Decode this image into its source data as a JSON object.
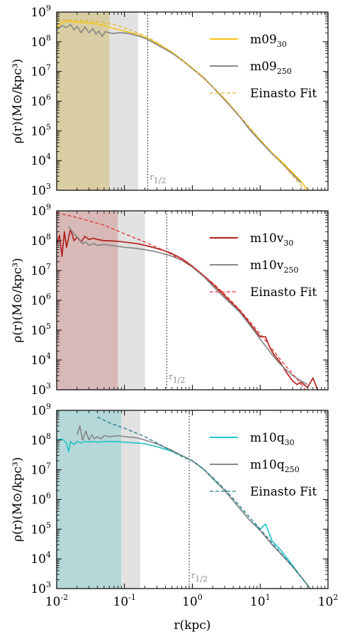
{
  "chart_data": [
    {
      "type": "line",
      "name": "m09",
      "xscale": "log",
      "yscale": "log",
      "xlim": [
        0.01,
        100
      ],
      "ylim": [
        1000,
        1000000000
      ],
      "xlabel": "r(kpc)",
      "ylabel": "ρ(r)(M⊙/kpc³)",
      "grid": false,
      "legend_position": "top-right",
      "shaded_regions": [
        {
          "x": [
            0.01,
            0.06
          ],
          "color": "#d9cea3"
        },
        {
          "x": [
            0.06,
            0.16
          ],
          "color": "#e2e2e2"
        }
      ],
      "vline": {
        "x": 0.22,
        "label_main": "r",
        "label_sub": "1/2"
      },
      "series": [
        {
          "name_main": "m09",
          "name_sub": "30",
          "color": "#f5c518",
          "style": "solid",
          "x": [
            0.01,
            0.012,
            0.015,
            0.02,
            0.025,
            0.03,
            0.04,
            0.05,
            0.07,
            0.1,
            0.15,
            0.2,
            0.3,
            0.5,
            0.7,
            1,
            1.5,
            2,
            3,
            5,
            7,
            10,
            15,
            20,
            30,
            40,
            55
          ],
          "y": [
            300000000,
            450000000,
            500000000,
            450000000,
            450000000,
            430000000,
            400000000,
            350000000,
            280000000,
            230000000,
            180000000,
            140000000,
            90000000,
            45000000,
            25000000,
            13000000,
            6000000,
            3000000,
            1200000,
            300000,
            120000,
            50000,
            18000,
            10000,
            4000,
            2000,
            800
          ]
        },
        {
          "name_main": "m09",
          "name_sub": "250",
          "color": "#888888",
          "style": "solid",
          "x": [
            0.01,
            0.012,
            0.014,
            0.016,
            0.018,
            0.02,
            0.023,
            0.026,
            0.03,
            0.034,
            0.038,
            0.042,
            0.047,
            0.052,
            0.06,
            0.07,
            0.08,
            0.1,
            0.13,
            0.17,
            0.22,
            0.3,
            0.5,
            0.7,
            1,
            1.5,
            2,
            3,
            5,
            7,
            10,
            15,
            20,
            30,
            40
          ],
          "y": [
            250000000,
            350000000,
            300000000,
            380000000,
            250000000,
            330000000,
            200000000,
            320000000,
            200000000,
            280000000,
            180000000,
            230000000,
            150000000,
            220000000,
            200000000,
            190000000,
            200000000,
            200000000,
            180000000,
            150000000,
            120000000,
            80000000,
            42000000,
            24000000,
            12500000,
            5800000,
            3000000,
            1100000,
            300000,
            110000,
            45000,
            17000,
            9000,
            3500,
            1800
          ]
        },
        {
          "name_main": "Einasto Fit",
          "name_sub": "",
          "color": "#e3b02c",
          "style": "dashed",
          "x": [
            0.01,
            0.02,
            0.04,
            0.07,
            0.1,
            0.2,
            0.3,
            0.5,
            1,
            2,
            3,
            5,
            10,
            20,
            40,
            60
          ],
          "y": [
            550000000,
            530000000,
            480000000,
            380000000,
            300000000,
            160000000,
            95000000,
            45000000,
            13000000,
            3000000,
            1200000,
            320000,
            50000,
            9000,
            1500,
            500
          ]
        }
      ]
    },
    {
      "type": "line",
      "name": "m10v",
      "xscale": "log",
      "yscale": "log",
      "xlim": [
        0.01,
        100
      ],
      "ylim": [
        1000,
        1000000000
      ],
      "xlabel": "r(kpc)",
      "ylabel": "ρ(r)(M⊙/kpc³)",
      "grid": false,
      "legend_position": "top-right",
      "shaded_regions": [
        {
          "x": [
            0.01,
            0.08
          ],
          "color": "#d8b9b7"
        },
        {
          "x": [
            0.08,
            0.2
          ],
          "color": "#e2e2e2"
        }
      ],
      "vline": {
        "x": 0.42,
        "label_main": "r",
        "label_sub": "1/2"
      },
      "series": [
        {
          "name_main": "m10v",
          "name_sub": "30",
          "color": "#b0201c",
          "style": "solid",
          "x": [
            0.01,
            0.011,
            0.012,
            0.013,
            0.014,
            0.016,
            0.018,
            0.02,
            0.023,
            0.026,
            0.03,
            0.035,
            0.04,
            0.05,
            0.06,
            0.08,
            0.1,
            0.15,
            0.2,
            0.3,
            0.4,
            0.5,
            0.7,
            1,
            1.5,
            2,
            3,
            5,
            7,
            10,
            12,
            14,
            16,
            20,
            25,
            30,
            35,
            40,
            50,
            60,
            70
          ],
          "y": [
            80000000,
            150000000,
            30000000,
            200000000,
            60000000,
            250000000,
            100000000,
            130000000,
            90000000,
            140000000,
            110000000,
            120000000,
            110000000,
            100000000,
            100000000,
            95000000,
            90000000,
            80000000,
            70000000,
            55000000,
            45000000,
            37000000,
            25000000,
            14000000,
            6500000,
            3500000,
            1400000,
            450000,
            170000,
            60000,
            60000,
            25000,
            15000,
            8000,
            3500,
            2000,
            1500,
            1800,
            1200,
            2500,
            1000
          ]
        },
        {
          "name_main": "m10v",
          "name_sub": "250",
          "color": "#888888",
          "style": "solid",
          "x": [
            0.015,
            0.017,
            0.019,
            0.021,
            0.024,
            0.027,
            0.03,
            0.035,
            0.04,
            0.05,
            0.06,
            0.08,
            0.1,
            0.15,
            0.2,
            0.3,
            0.5,
            0.7,
            1,
            1.5,
            2,
            3,
            5,
            7,
            10,
            15,
            20,
            30,
            40,
            50
          ],
          "y": [
            300000000,
            200000000,
            150000000,
            120000000,
            80000000,
            90000000,
            70000000,
            80000000,
            70000000,
            75000000,
            70000000,
            65000000,
            60000000,
            55000000,
            50000000,
            42000000,
            30000000,
            22000000,
            13000000,
            6000000,
            3000000,
            1200000,
            400000,
            150000,
            50000,
            15000,
            7000,
            3000,
            2000,
            1500
          ]
        },
        {
          "name_main": "Einasto Fit",
          "name_sub": "",
          "color": "#e03232",
          "style": "dashed",
          "x": [
            0.01,
            0.02,
            0.05,
            0.1,
            0.2,
            0.4,
            0.7,
            1,
            2,
            3,
            5,
            10,
            20,
            30,
            50
          ],
          "y": [
            850000000,
            600000000,
            330000000,
            170000000,
            90000000,
            45000000,
            22000000,
            14000000,
            3800000,
            1600000,
            480000,
            75000,
            10000,
            3500,
            800
          ]
        }
      ]
    },
    {
      "type": "line",
      "name": "m10q",
      "xscale": "log",
      "yscale": "log",
      "xlim": [
        0.01,
        100
      ],
      "ylim": [
        1000,
        1000000000
      ],
      "xlabel": "r(kpc)",
      "ylabel": "ρ(r)(M⊙/kpc³)",
      "grid": false,
      "legend_position": "top-right",
      "shaded_regions": [
        {
          "x": [
            0.01,
            0.09
          ],
          "color": "#b6d8d9"
        },
        {
          "x": [
            0.09,
            0.17
          ],
          "color": "#e2e2e2"
        }
      ],
      "vline": {
        "x": 0.9,
        "label_main": "r",
        "label_sub": "1/2"
      },
      "series": [
        {
          "name_main": "m10q",
          "name_sub": "30",
          "color": "#28c4c8",
          "style": "solid",
          "x": [
            0.01,
            0.012,
            0.014,
            0.015,
            0.016,
            0.018,
            0.02,
            0.023,
            0.026,
            0.03,
            0.035,
            0.04,
            0.05,
            0.06,
            0.08,
            0.1,
            0.15,
            0.2,
            0.3,
            0.5,
            0.7,
            1,
            1.5,
            2,
            3,
            5,
            7,
            10,
            12,
            15,
            20,
            30,
            40,
            55
          ],
          "y": [
            100000000,
            110000000,
            80000000,
            40000000,
            90000000,
            70000000,
            90000000,
            80000000,
            90000000,
            85000000,
            90000000,
            85000000,
            88000000,
            90000000,
            88000000,
            85000000,
            80000000,
            75000000,
            60000000,
            42000000,
            30000000,
            20000000,
            10000000,
            5000000,
            2000000,
            500000,
            200000,
            100000,
            150000,
            40000,
            20000,
            6000,
            2500,
            1000
          ]
        },
        {
          "name_main": "m10q",
          "name_sub": "250",
          "color": "#888888",
          "style": "solid",
          "x": [
            0.02,
            0.022,
            0.024,
            0.027,
            0.03,
            0.033,
            0.036,
            0.04,
            0.045,
            0.05,
            0.06,
            0.08,
            0.1,
            0.15,
            0.2,
            0.3,
            0.5,
            0.7,
            1,
            1.5,
            2,
            3,
            5,
            7,
            10,
            15,
            20,
            30,
            40,
            55
          ],
          "y": [
            150000000,
            300000000,
            100000000,
            200000000,
            100000000,
            150000000,
            110000000,
            130000000,
            110000000,
            140000000,
            130000000,
            140000000,
            130000000,
            120000000,
            100000000,
            75000000,
            45000000,
            30000000,
            20000000,
            10000000,
            5200000,
            2000000,
            500000,
            200000,
            90000,
            30000,
            15000,
            5500,
            2500,
            1000
          ]
        },
        {
          "name_main": "Einasto Fit",
          "name_sub": "",
          "color": "#1b7a8a",
          "style": "dashed",
          "x": [
            0.04,
            0.06,
            0.1,
            0.2,
            0.3,
            0.5,
            0.7,
            1,
            1.5,
            2,
            3,
            5,
            10,
            20,
            30,
            50
          ],
          "y": [
            600000000,
            380000000,
            250000000,
            130000000,
            80000000,
            42000000,
            28000000,
            20000000,
            10000000,
            5500000,
            2200000,
            600000,
            100000,
            16000,
            5500,
            1300
          ]
        }
      ]
    }
  ]
}
